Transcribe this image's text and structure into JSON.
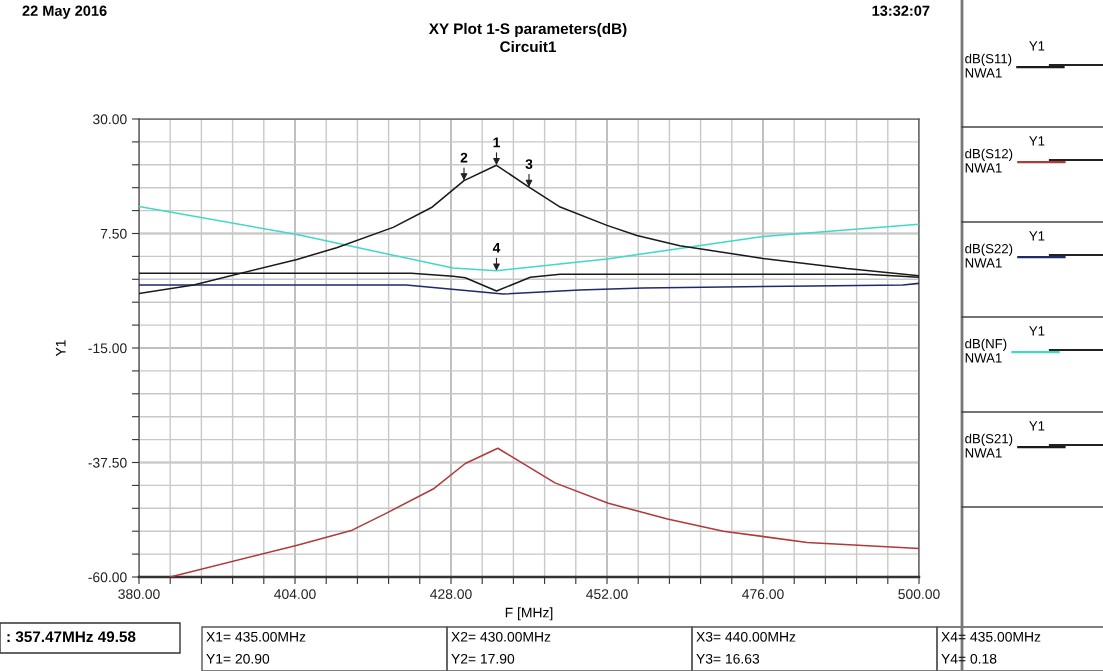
{
  "chart_data": {
    "type": "line",
    "title": "XY Plot 1-S parameters(dB)",
    "subtitle": "Circuit1",
    "xlabel": "F [MHz]",
    "ylabel": "Y1",
    "series": [
      {
        "name": "dB(S11)\nNWA1",
        "color": "#1a1a1a",
        "x": [
          380,
          421.9,
          428.3,
          430.2,
          435,
          440.2,
          444.8,
          491.8,
          500
        ],
        "values": [
          -0.3,
          -0.3,
          -0.9,
          -1.2,
          -3.8,
          -1.1,
          -0.5,
          -0.5,
          -1.1
        ]
      },
      {
        "name": "dB(S12)\nNWA1",
        "color": "#b03a3a",
        "x": [
          384.8,
          404.2,
          412.8,
          418.0,
          425.4,
          430.2,
          435.2,
          444.0,
          452.2,
          461.3,
          469.9,
          482.8,
          500
        ],
        "values": [
          -60,
          -53.8,
          -50.8,
          -47.5,
          -42.6,
          -37.7,
          -34.7,
          -41.5,
          -45.5,
          -48.6,
          -51.0,
          -53.2,
          -54.4
        ]
      },
      {
        "name": "dB(S22)\nNWA1",
        "color": "#1f2a6b",
        "x": [
          380,
          421.1,
          431.9,
          436.0,
          447.8,
          457.5,
          483.7,
          497.5,
          500
        ],
        "values": [
          -2.6,
          -2.6,
          -3.9,
          -4.4,
          -3.6,
          -3.2,
          -2.8,
          -2.6,
          -2.3
        ]
      },
      {
        "name": "dB(NF)\nNWA1",
        "color": "#40d8c8",
        "x": [
          380,
          404.3,
          428.3,
          435,
          452,
          476,
          500
        ],
        "values": [
          12.8,
          7.3,
          0.7,
          0.18,
          2.5,
          6.9,
          9.3
        ]
      },
      {
        "name": "dB(S21)\nNWA1",
        "color": "#1a1a1a",
        "x": [
          380,
          388.4,
          404.3,
          410.4,
          419.1,
          425.0,
          430,
          435,
          440,
          444.8,
          452.0,
          456.6,
          463.2,
          476.0,
          488.9,
          500
        ],
        "values": [
          -4.3,
          -2.6,
          2.4,
          4.7,
          8.7,
          12.6,
          17.9,
          20.9,
          16.63,
          12.7,
          9.1,
          7.1,
          5.1,
          2.6,
          0.6,
          -0.8
        ]
      }
    ],
    "xlim": [
      380,
      500
    ],
    "ylim": [
      -60,
      30
    ],
    "xticks": [
      {
        "value": 380,
        "label": "380.00"
      },
      {
        "value": 384.8,
        "label": null
      },
      {
        "value": 389.6,
        "label": null
      },
      {
        "value": 394.4,
        "label": null
      },
      {
        "value": 399.2,
        "label": null
      },
      {
        "value": 404,
        "label": "404.00"
      },
      {
        "value": 408.8,
        "label": null
      },
      {
        "value": 413.6,
        "label": null
      },
      {
        "value": 418.4,
        "label": null
      },
      {
        "value": 423.2,
        "label": null
      },
      {
        "value": 428,
        "label": "428.00"
      },
      {
        "value": 432.8,
        "label": null
      },
      {
        "value": 437.6,
        "label": null
      },
      {
        "value": 442.4,
        "label": null
      },
      {
        "value": 447.2,
        "label": null
      },
      {
        "value": 452,
        "label": "452.00"
      },
      {
        "value": 456.8,
        "label": null
      },
      {
        "value": 461.6,
        "label": null
      },
      {
        "value": 466.4,
        "label": null
      },
      {
        "value": 471.2,
        "label": null
      },
      {
        "value": 476,
        "label": "476.00"
      },
      {
        "value": 480.8,
        "label": null
      },
      {
        "value": 485.6,
        "label": null
      },
      {
        "value": 490.4,
        "label": null
      },
      {
        "value": 495.2,
        "label": null
      },
      {
        "value": 500,
        "label": "500.00"
      }
    ],
    "yticks": [
      {
        "value": -60,
        "label": "-60.00"
      },
      {
        "value": -55.5,
        "label": null
      },
      {
        "value": -51,
        "label": null
      },
      {
        "value": -46.5,
        "label": null
      },
      {
        "value": -42,
        "label": null
      },
      {
        "value": -37.5,
        "label": "-37.50"
      },
      {
        "value": -33,
        "label": null
      },
      {
        "value": -28.5,
        "label": null
      },
      {
        "value": -24,
        "label": null
      },
      {
        "value": -19.5,
        "label": null
      },
      {
        "value": -15,
        "label": "-15.00"
      },
      {
        "value": -10.5,
        "label": null
      },
      {
        "value": -6,
        "label": null
      },
      {
        "value": -1.5,
        "label": null
      },
      {
        "value": 3,
        "label": null
      },
      {
        "value": 7.5,
        "label": "7.50"
      },
      {
        "value": 12,
        "label": null
      },
      {
        "value": 16.5,
        "label": null
      },
      {
        "value": 21,
        "label": null
      },
      {
        "value": 25.5,
        "label": null
      },
      {
        "value": 30,
        "label": "30.00"
      }
    ],
    "grid": true,
    "legend": "right",
    "annotations": [
      "22 May 2016",
      "13:32:07",
      ": 357.47MHz 49.58",
      "X1= 435.00MHz",
      "Y1= 20.90",
      "X2= 430.00MHz",
      "Y2= 17.90",
      "X3= 440.00MHz",
      "Y3= 16.63",
      "X4= 435.00MHz",
      "Y4= 0.18",
      {
        "text": "1",
        "x": 435,
        "y": 20.9
      },
      {
        "text": "2",
        "x": 430,
        "y": 17.9
      },
      {
        "text": "3",
        "x": 440,
        "y": 16.63
      },
      {
        "text": "4",
        "x": 435,
        "y": 0.18
      }
    ]
  }
}
